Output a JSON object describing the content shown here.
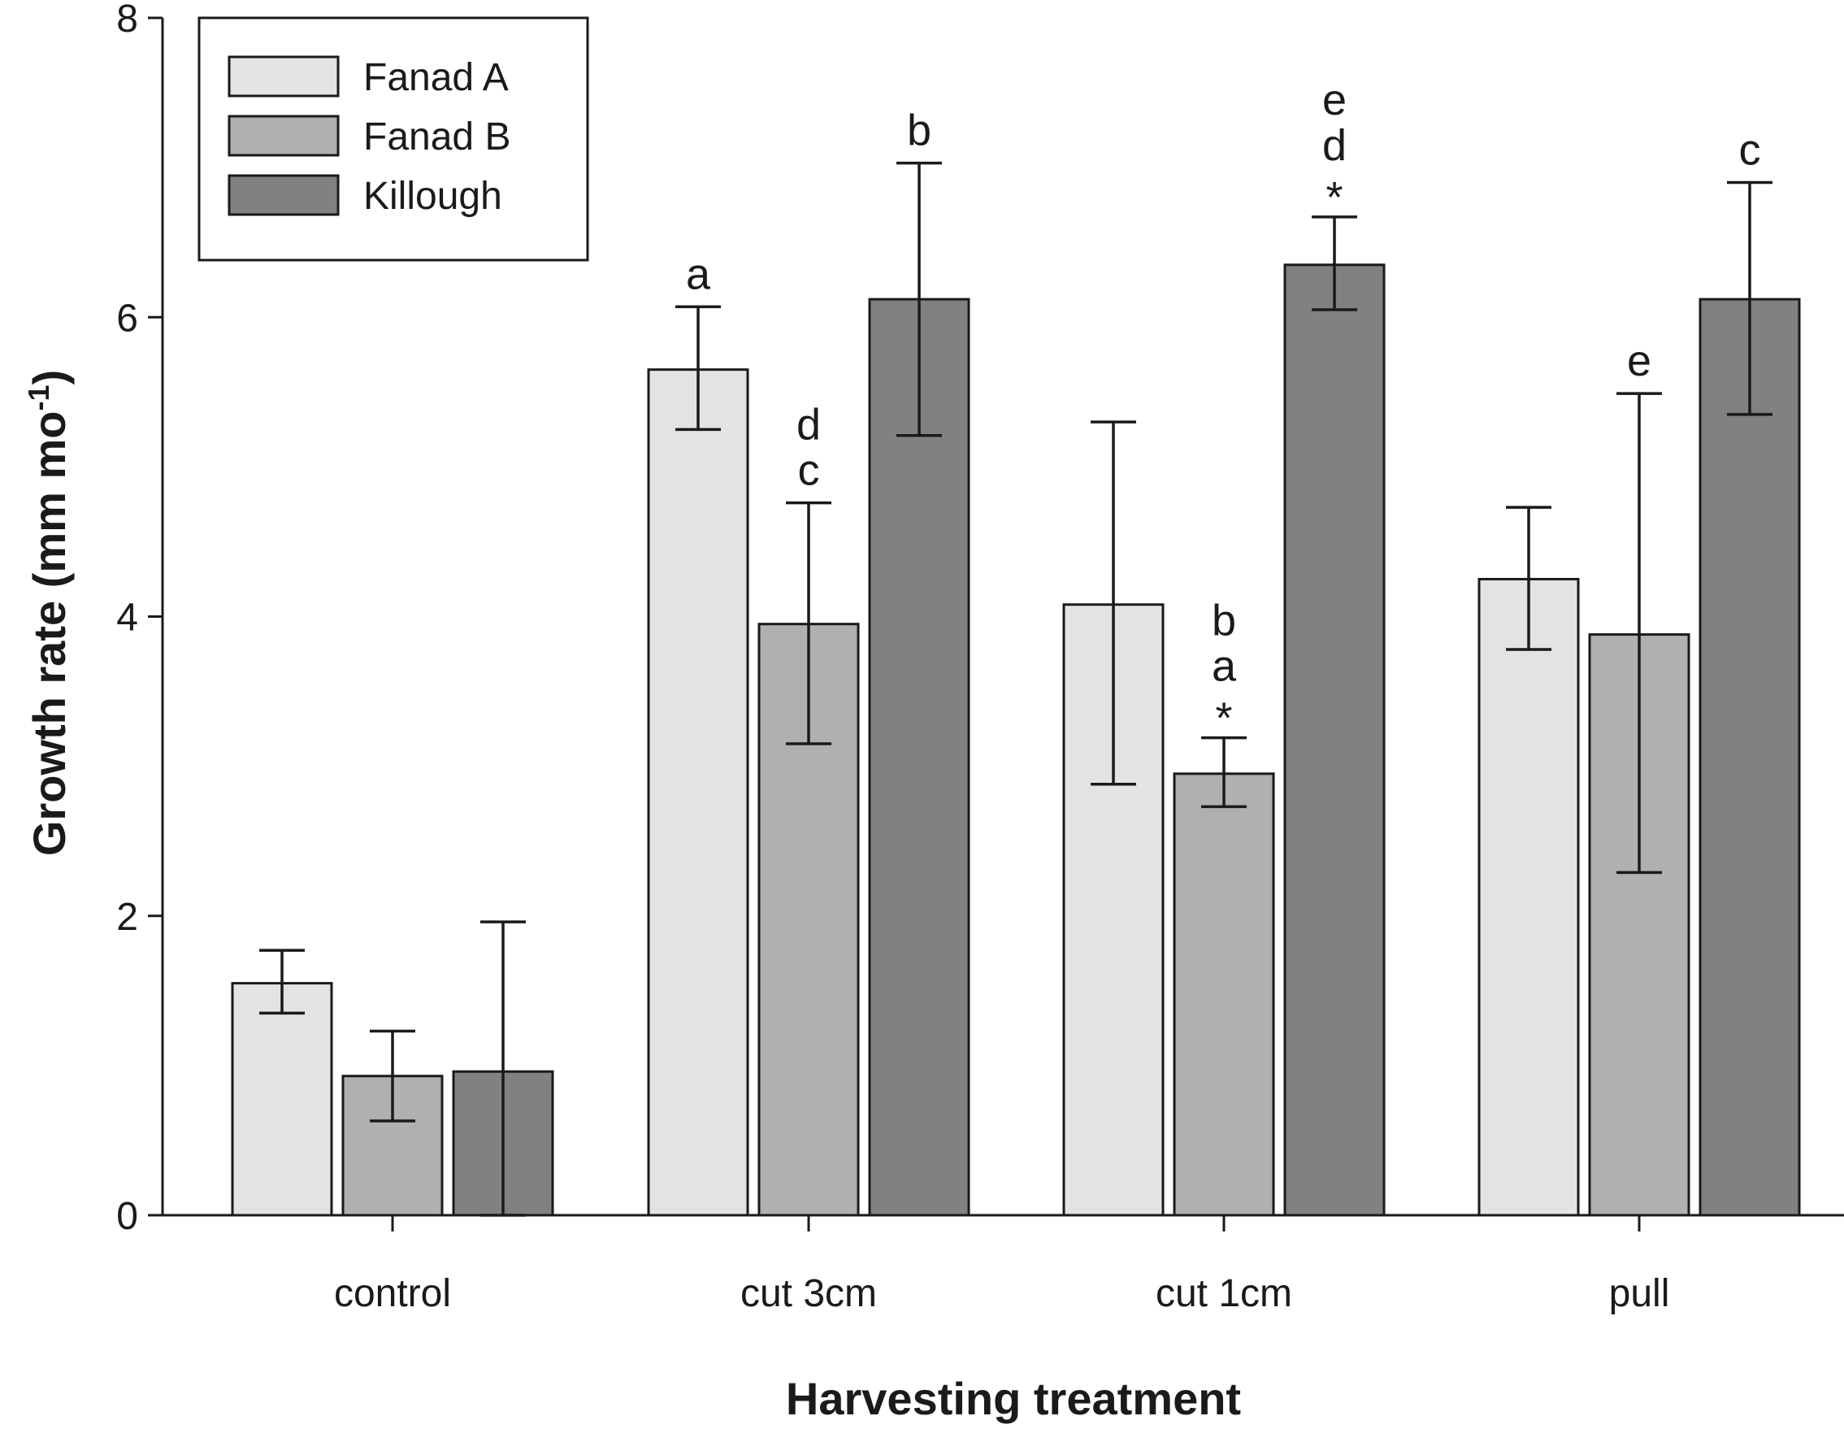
{
  "chart_data": {
    "type": "bar",
    "title": "",
    "xlabel": "Harvesting treatment",
    "ylabel": "Growth rate (mm mo",
    "ylabel_sup": "-1",
    "ylabel_close": ")",
    "ylim": [
      0,
      8
    ],
    "yticks": [
      "0",
      "2",
      "4",
      "6",
      "8"
    ],
    "categories": [
      "control",
      "cut 3cm",
      "cut 1cm",
      "pull"
    ],
    "legend_position": "top-left",
    "series": [
      {
        "name": "Fanad A",
        "color": "#e4e3e4",
        "values": [
          1.55,
          5.65,
          4.08,
          4.25
        ],
        "err_low": [
          1.35,
          5.25,
          2.88,
          3.78
        ],
        "err_high": [
          1.77,
          6.07,
          5.3,
          4.73
        ],
        "labels": [
          "",
          "a",
          "",
          ""
        ]
      },
      {
        "name": "Fanad B",
        "color": "#b0b0b0",
        "values": [
          0.93,
          3.95,
          2.95,
          3.88
        ],
        "err_low": [
          0.63,
          3.15,
          2.73,
          2.29
        ],
        "err_high": [
          1.23,
          4.76,
          3.19,
          5.49
        ],
        "labels": [
          "",
          "c\nd",
          "*\na\nb",
          "e"
        ]
      },
      {
        "name": "Killough",
        "color": "#808180",
        "values": [
          0.96,
          6.12,
          6.35,
          6.12
        ],
        "err_low": [
          0.0,
          5.21,
          6.05,
          5.35
        ],
        "err_high": [
          1.96,
          7.03,
          6.67,
          6.9
        ],
        "labels": [
          "",
          "b",
          "*\nd\ne",
          "c"
        ]
      }
    ]
  }
}
